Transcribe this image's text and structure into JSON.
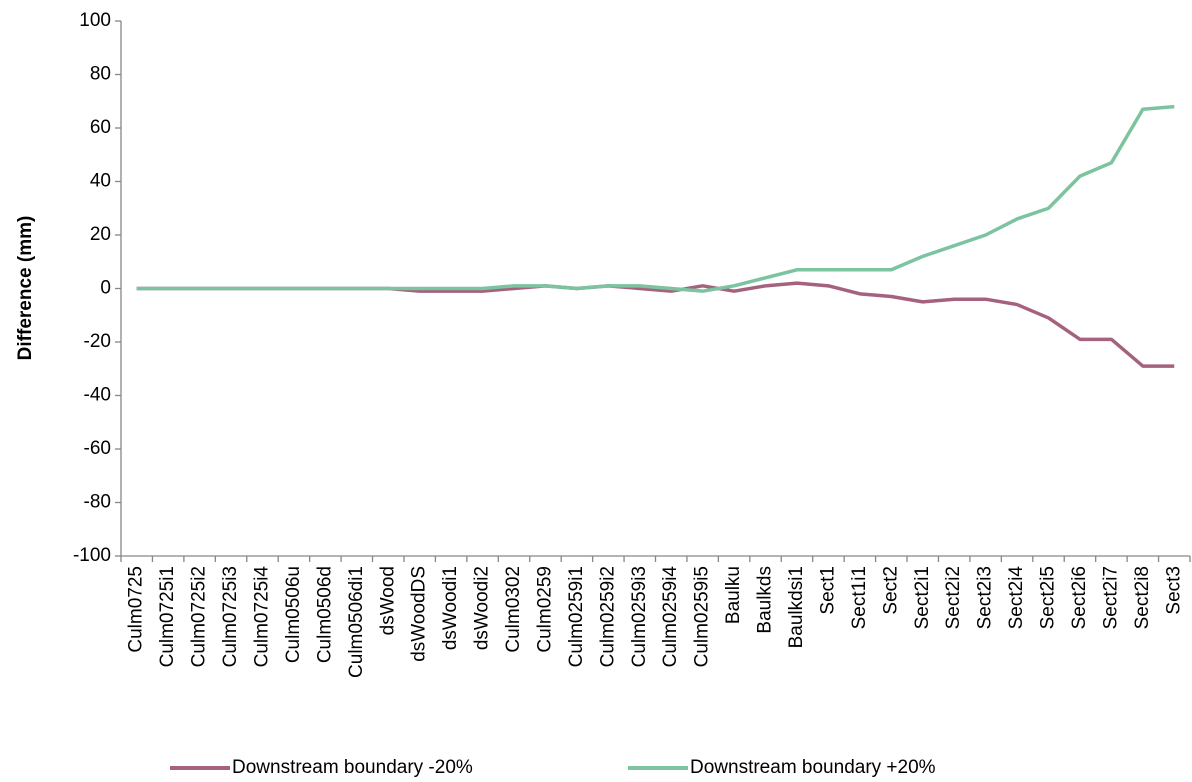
{
  "chart_data": {
    "type": "line",
    "y_label": "Difference (mm)",
    "categories": [
      "Culm0725",
      "Culm0725i1",
      "Culm0725i2",
      "Culm0725i3",
      "Culm0725i4",
      "Culm0506u",
      "Culm0506d",
      "Culm0506di1",
      "dsWood",
      "dsWoodDS",
      "dsWoodi1",
      "dsWoodi2",
      "Culm0302",
      "Culm0259",
      "Culm0259i1",
      "Culm0259i2",
      "Culm0259i3",
      "Culm0259i4",
      "Culm0259i5",
      "Baulku",
      "Baulkds",
      "Baulkdsi1",
      "Sect1",
      "Sect1i1",
      "Sect2",
      "Sect2i1",
      "Sect2i2",
      "Sect2i3",
      "Sect2i4",
      "Sect2i5",
      "Sect2i6",
      "Sect2i7",
      "Sect2i8",
      "Sect3"
    ],
    "series": [
      {
        "name": "Downstream boundary -20%",
        "color": "#a5627f",
        "values": [
          0,
          0,
          0,
          0,
          0,
          0,
          0,
          0,
          0,
          -1,
          -1,
          -1,
          0,
          1,
          0,
          1,
          0,
          -1,
          1,
          -1,
          1,
          2,
          1,
          -2,
          -3,
          -5,
          -4,
          -4,
          -6,
          -11,
          -19,
          -19,
          -29,
          -29
        ]
      },
      {
        "name": "Downstream boundary +20%",
        "color": "#7cc3a0",
        "values": [
          0,
          0,
          0,
          0,
          0,
          0,
          0,
          0,
          0,
          0,
          0,
          0,
          1,
          1,
          0,
          1,
          1,
          0,
          -1,
          1,
          4,
          7,
          7,
          7,
          7,
          12,
          16,
          20,
          26,
          30,
          42,
          47,
          67,
          68
        ]
      }
    ],
    "ylim": [
      -100,
      100
    ],
    "yticks": [
      -100,
      -80,
      -60,
      -40,
      -20,
      0,
      20,
      40,
      60,
      80,
      100
    ],
    "grid": false,
    "legend": "bottom"
  }
}
